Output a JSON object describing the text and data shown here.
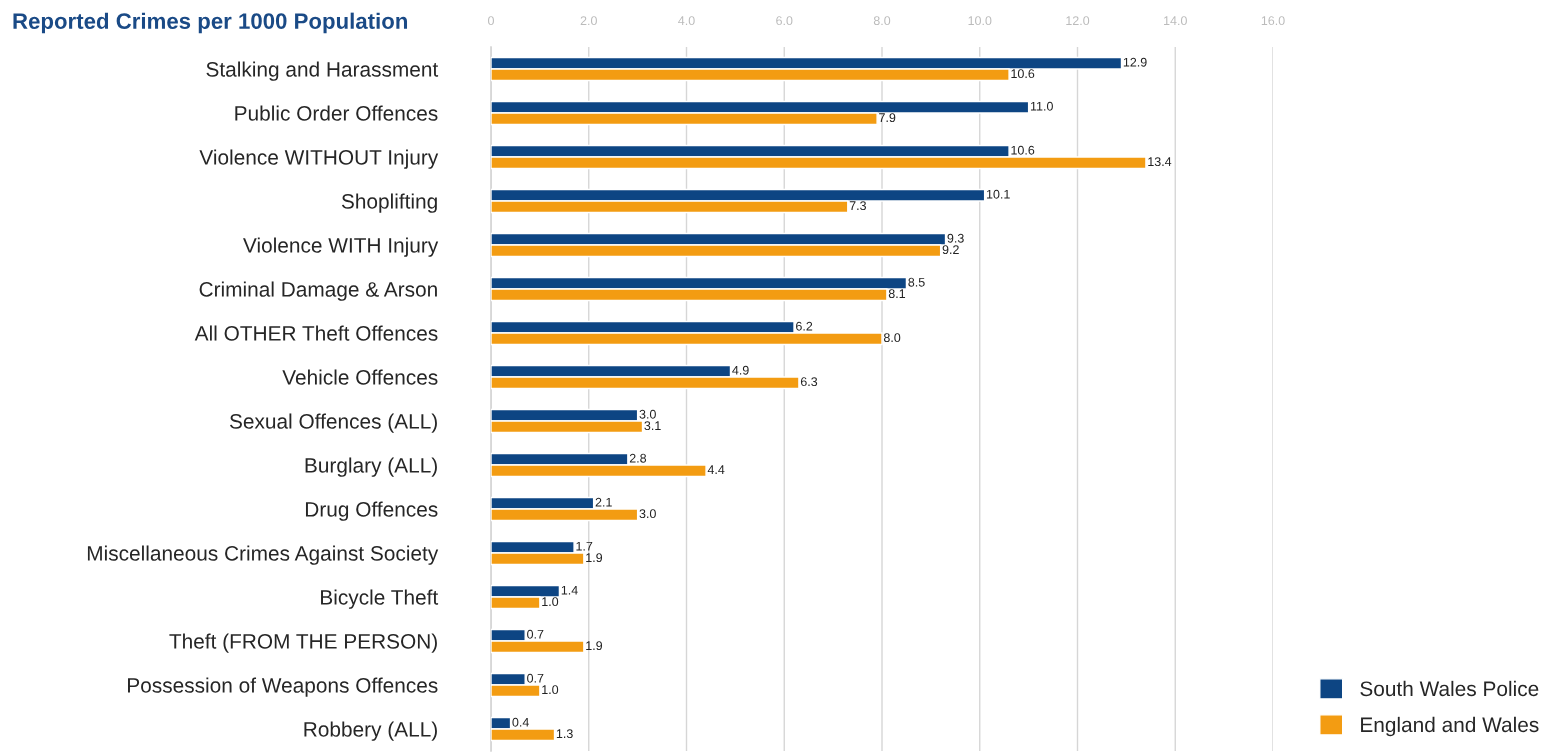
{
  "chart_data": {
    "type": "bar",
    "orientation": "horizontal",
    "title": "Reported Crimes per 1000 Population",
    "categories": [
      "Stalking and Harassment",
      "Public Order Offences",
      "Violence WITHOUT Injury",
      "Shoplifting",
      "Violence WITH Injury",
      "Criminal Damage & Arson",
      "All OTHER Theft Offences",
      "Vehicle Offences",
      "Sexual Offences (ALL)",
      "Burglary (ALL)",
      "Drug Offences",
      "Miscellaneous Crimes Against Society",
      "Bicycle Theft",
      "Theft (FROM THE PERSON)",
      "Possession of Weapons Offences",
      "Robbery (ALL)"
    ],
    "series": [
      {
        "name": "South Wales Police",
        "color": "#0d4583",
        "values": [
          12.9,
          11.0,
          10.6,
          10.1,
          9.3,
          8.5,
          6.2,
          4.9,
          3.0,
          2.8,
          2.1,
          1.7,
          1.4,
          0.7,
          0.7,
          0.4
        ],
        "value_labels": [
          "12.9",
          "11.0",
          "10.6",
          "10.1",
          "9.3",
          "8.5",
          "6.2",
          "4.9",
          "3.0",
          "2.8",
          "2.1",
          "1.7",
          "1.4",
          "0.7",
          "0.7",
          "0.4"
        ]
      },
      {
        "name": "England and Wales",
        "color": "#f39c12",
        "values": [
          10.6,
          7.9,
          13.4,
          7.3,
          9.2,
          8.1,
          8.0,
          6.3,
          3.1,
          4.4,
          3.0,
          1.9,
          1.0,
          1.9,
          1.0,
          1.3
        ],
        "value_labels": [
          "10.6",
          "7.9",
          "13.4",
          "7.3",
          "9.2",
          "8.1",
          "8.0",
          "6.3",
          "3.1",
          "4.4",
          "3.0",
          "1.9",
          "1.0",
          "1.9",
          "1.0",
          "1.3"
        ]
      }
    ],
    "xlim": [
      0,
      16
    ],
    "xticks": [
      0,
      {
        "value": 2,
        "label": "2.0"
      },
      {
        "value": 4,
        "label": "4.0"
      },
      {
        "value": 6,
        "label": "6.0"
      },
      {
        "value": 8,
        "label": "8.0"
      },
      {
        "value": 10,
        "label": "10.0"
      },
      {
        "value": 12,
        "label": "12.0"
      },
      {
        "value": 14,
        "label": "14.0"
      },
      {
        "value": 16,
        "label": "16.0"
      }
    ],
    "grid": "x",
    "legend": "bottom right"
  }
}
